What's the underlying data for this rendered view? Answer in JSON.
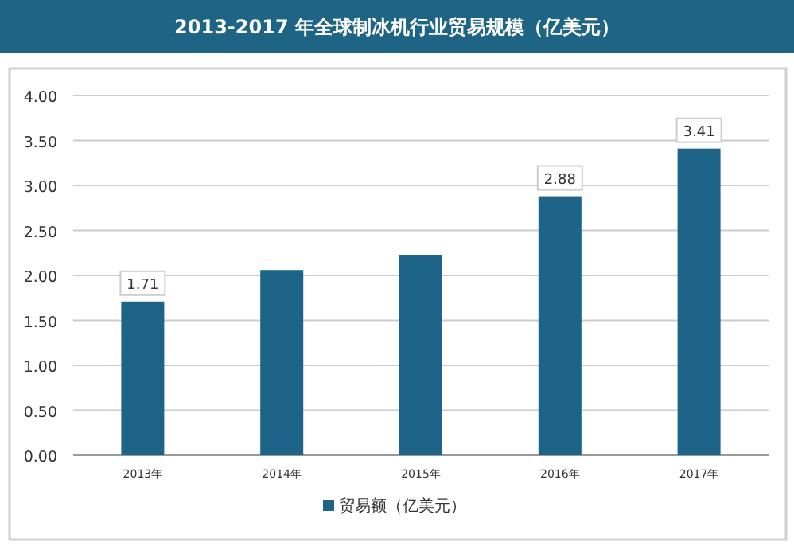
{
  "chart_data": {
    "type": "bar",
    "title": "2013-2017 年全球制冰机行业贸易规模（亿美元）",
    "categories": [
      "2013年",
      "2014年",
      "2015年",
      "2016年",
      "2017年"
    ],
    "series": [
      {
        "name": "贸易额（亿美元）",
        "color": "#1d6488",
        "values": [
          1.71,
          2.06,
          2.23,
          2.88,
          3.41
        ],
        "value_labels": [
          "1.71",
          null,
          null,
          "2.88",
          "3.41"
        ]
      }
    ],
    "ylim": [
      0,
      4
    ],
    "yticks": [
      {
        "value": 0,
        "label": "0.00"
      },
      {
        "value": 0.5,
        "label": "0.50"
      },
      {
        "value": 1,
        "label": "1.00"
      },
      {
        "value": 1.5,
        "label": "1.50"
      },
      {
        "value": 2,
        "label": "2.00"
      },
      {
        "value": 2.5,
        "label": "2.50"
      },
      {
        "value": 3,
        "label": "3.00"
      },
      {
        "value": 3.5,
        "label": "3.50"
      },
      {
        "value": 4,
        "label": "4.00"
      }
    ],
    "grid": "y",
    "legend": "bottom"
  }
}
